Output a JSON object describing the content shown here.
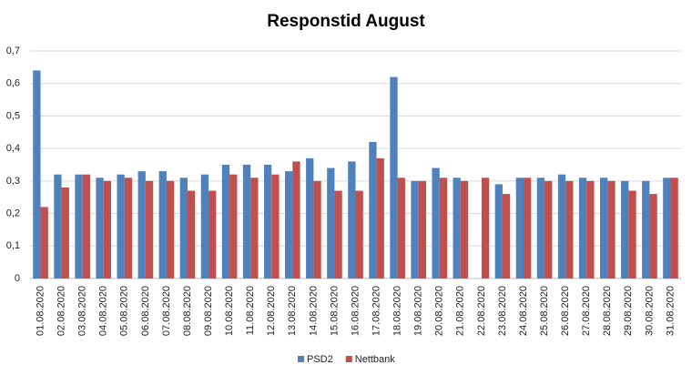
{
  "chart_data": {
    "type": "bar",
    "title": "Responstid August",
    "categories": [
      "01.08.2020",
      "02.08.2020",
      "03.08.2020",
      "04.08.2020",
      "05.08.2020",
      "06.08.2020",
      "07.08.2020",
      "08.08.2020",
      "09.08.2020",
      "10.08.2020",
      "11.08.2020",
      "12.08.2020",
      "13.08.2020",
      "14.08.2020",
      "15.08.2020",
      "16.08.2020",
      "17.08.2020",
      "18.08.2020",
      "19.08.2020",
      "20.08.2020",
      "21.08.2020",
      "22.08.2020",
      "23.08.2020",
      "24.08.2020",
      "25.08.2020",
      "26.08.2020",
      "27.08.2020",
      "28.08.2020",
      "29.08.2020",
      "30.08.2020",
      "31.08.2020"
    ],
    "series": [
      {
        "name": "PSD2",
        "color": "#4f81bd",
        "values": [
          0.64,
          0.32,
          0.32,
          0.31,
          0.32,
          0.33,
          0.33,
          0.31,
          0.32,
          0.35,
          0.35,
          0.35,
          0.33,
          0.37,
          0.34,
          0.36,
          0.42,
          0.62,
          0.3,
          0.34,
          0.31,
          null,
          0.29,
          0.31,
          0.31,
          0.32,
          0.31,
          0.31,
          0.3,
          0.3,
          0.31
        ]
      },
      {
        "name": "Nettbank",
        "color": "#c0504d",
        "values": [
          0.22,
          0.28,
          0.32,
          0.3,
          0.31,
          0.3,
          0.3,
          0.27,
          0.27,
          0.32,
          0.31,
          0.32,
          0.36,
          0.3,
          0.27,
          0.27,
          0.37,
          0.31,
          0.3,
          0.31,
          0.3,
          0.31,
          0.26,
          0.31,
          0.3,
          0.3,
          0.3,
          0.3,
          0.27,
          0.26,
          0.31
        ]
      }
    ],
    "ylim": [
      0,
      0.7
    ],
    "yticks": [
      0,
      {
        "value": 0.1,
        "label": "0,1"
      },
      {
        "value": 0.2,
        "label": "0,2"
      },
      {
        "value": 0.3,
        "label": "0,3"
      },
      {
        "value": 0.4,
        "label": "0,4"
      },
      {
        "value": 0.5,
        "label": "0,5"
      },
      {
        "value": 0.6,
        "label": "0,6"
      },
      {
        "value": 0.7,
        "label": "0,7"
      }
    ],
    "grid": true,
    "legend": "bottom"
  }
}
